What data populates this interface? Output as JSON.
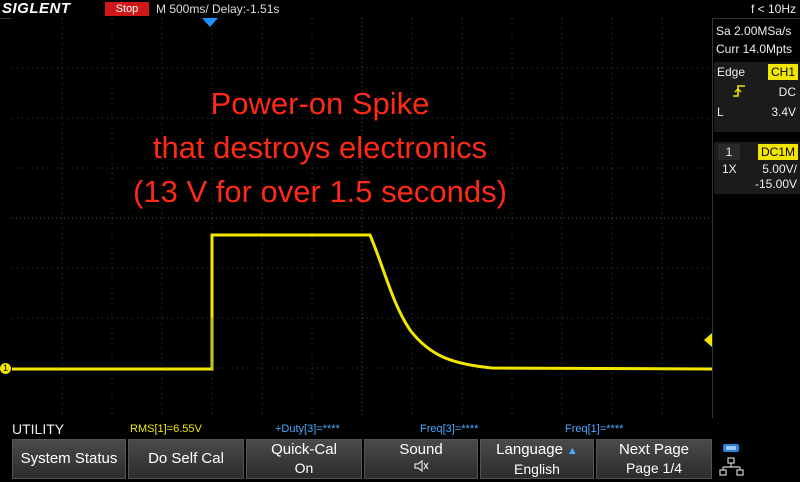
{
  "header": {
    "brand": "SIGLENT",
    "run_state": "Stop",
    "timebase": "M 500ms/  Delay:-1.51s",
    "trigger_freq": "f < 10Hz"
  },
  "acquisition": {
    "sample_rate": "Sa 2.00MSa/s",
    "memory_depth": "Curr 14.0Mpts"
  },
  "trigger": {
    "type_label": "Edge",
    "source": "CH1",
    "slope_icon": "rising-edge-icon",
    "coupling": "DC",
    "level_label": "L",
    "level_value": "3.4V"
  },
  "channel1": {
    "number": "1",
    "coupling": "DC1M",
    "probe": "1X",
    "scale": "5.00V/",
    "offset": "-15.00V",
    "marker": "1"
  },
  "annotation": {
    "line1": "Power-on Spike",
    "line2": "that destroys electronics",
    "line3": "(13 V for over 1.5 seconds)"
  },
  "measurements": {
    "menu_title": "UTILITY",
    "rms": "RMS[1]=6.55V",
    "duty": "+Duty[3]=****",
    "freq3": "Freq[3]=****",
    "freq1": "Freq[1]=****"
  },
  "softkeys": {
    "system_status": "System Status",
    "do_self_cal": "Do Self Cal",
    "quick_cal": "Quick-Cal",
    "quick_cal_state": "On",
    "sound": "Sound",
    "sound_icon": "speaker-icon",
    "language": "Language",
    "language_value": "English",
    "next_page": "Next Page",
    "page_indicator": "Page 1/4"
  },
  "colors": {
    "trace": "#f2e600",
    "stop": "#d01818",
    "annotation": "#ff2a16",
    "measurement_inactive": "#4aa8ff"
  }
}
